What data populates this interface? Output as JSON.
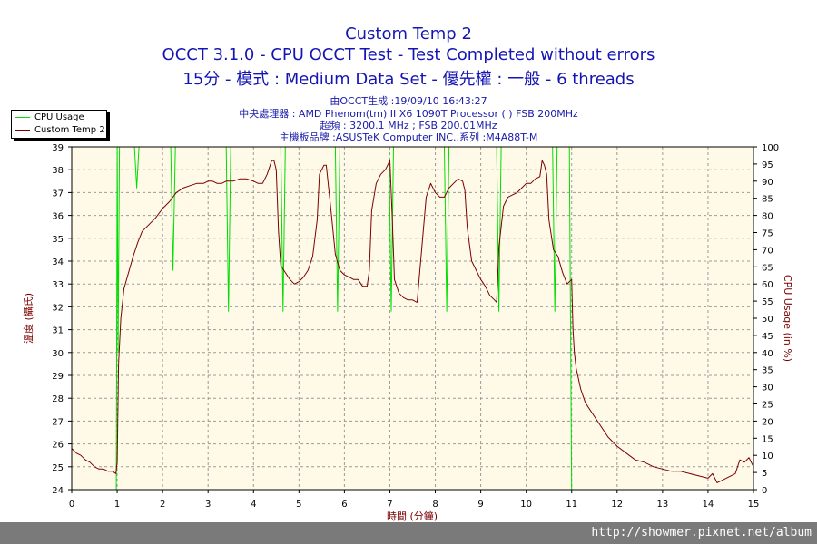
{
  "header": {
    "title": "Custom Temp 2",
    "line2": "OCCT 3.1.0 - CPU OCCT Test - Test Completed without errors",
    "line3": "15分 - 模式 : Medium Data Set - 優先權 : 一般 - 6 threads",
    "info": [
      "由OCCT生成 :19/09/10 16:43:27",
      "中央處理器 : AMD Phenom(tm) II X6 1090T Processor (  ) FSB 200MHz",
      "超頻 : 3200.1 MHz ; FSB 200.01MHz",
      "主機板品牌 :ASUSTeK Computer INC.,系列 :M4A88T-M"
    ]
  },
  "footer": {
    "url": "http://showmer.pixnet.net/album"
  },
  "colors": {
    "plot_bg": "#fffae8",
    "cpu_usage": "#00dd00",
    "temp": "#7a0000",
    "title": "#1515b5",
    "grid": "#9a9a9a"
  },
  "chart_data": {
    "type": "line",
    "xlabel": "時間 (分鐘)",
    "ylabel_left": "溫度 (攝氏)",
    "ylabel_right": "CPU Usage (in %)",
    "xlim": [
      0,
      15
    ],
    "ylim_left": [
      24,
      39
    ],
    "ylim_right": [
      0,
      100
    ],
    "x_ticks": [
      "0",
      "1",
      "2",
      "3",
      "4",
      "5",
      "6",
      "7",
      "8",
      "9",
      "10",
      "11",
      "12",
      "13",
      "14",
      "15"
    ],
    "y_ticks_left": [
      "24",
      "25",
      "26",
      "27",
      "28",
      "29",
      "30",
      "31",
      "32",
      "33",
      "34",
      "35",
      "36",
      "37",
      "38",
      "39"
    ],
    "y_ticks_right": [
      "0",
      "5",
      "10",
      "15",
      "20",
      "25",
      "30",
      "35",
      "40",
      "45",
      "50",
      "55",
      "60",
      "65",
      "70",
      "75",
      "80",
      "85",
      "90",
      "95",
      "100"
    ],
    "grid": true,
    "legend": [
      "CPU Usage",
      "Custom Temp 2"
    ],
    "series": [
      {
        "name": "CPU Usage",
        "axis": "right",
        "x": [
          0,
          0.98,
          1.0,
          1.02,
          1.05,
          1.1,
          1.38,
          1.43,
          1.48,
          1.53,
          2.18,
          2.23,
          2.28,
          2.34,
          3.4,
          3.45,
          3.5,
          3.56,
          4.6,
          4.65,
          4.7,
          4.76,
          5.8,
          5.85,
          5.9,
          5.96,
          6.98,
          7.03,
          7.08,
          7.14,
          8.2,
          8.25,
          8.3,
          8.36,
          9.35,
          9.4,
          9.45,
          9.51,
          10.58,
          10.63,
          10.68,
          10.74,
          10.95,
          11.0,
          11.05,
          15
        ],
        "values": [
          0,
          0,
          100,
          40,
          100,
          100,
          100,
          88,
          100,
          100,
          100,
          64,
          100,
          100,
          100,
          52,
          100,
          100,
          100,
          52,
          100,
          100,
          100,
          52,
          100,
          100,
          100,
          52,
          100,
          100,
          100,
          52,
          100,
          100,
          100,
          52,
          100,
          100,
          100,
          52,
          100,
          100,
          100,
          0,
          0,
          0
        ]
      },
      {
        "name": "Custom Temp 2",
        "axis": "left",
        "x": [
          0,
          0.1,
          0.2,
          0.3,
          0.4,
          0.5,
          0.6,
          0.7,
          0.8,
          0.9,
          0.97,
          1.0,
          1.03,
          1.08,
          1.15,
          1.25,
          1.35,
          1.45,
          1.55,
          1.7,
          1.85,
          2.0,
          2.15,
          2.3,
          2.45,
          2.6,
          2.75,
          2.9,
          3.0,
          3.1,
          3.2,
          3.3,
          3.4,
          3.55,
          3.7,
          3.85,
          4.0,
          4.1,
          4.2,
          4.3,
          4.4,
          4.45,
          4.5,
          4.55,
          4.6,
          4.7,
          4.8,
          4.9,
          5.0,
          5.1,
          5.2,
          5.3,
          5.4,
          5.45,
          5.5,
          5.55,
          5.6,
          5.7,
          5.8,
          5.9,
          6.0,
          6.1,
          6.2,
          6.3,
          6.4,
          6.5,
          6.55,
          6.6,
          6.7,
          6.8,
          6.9,
          6.95,
          7.0,
          7.05,
          7.1,
          7.2,
          7.3,
          7.4,
          7.5,
          7.6,
          7.7,
          7.8,
          7.9,
          8.0,
          8.1,
          8.2,
          8.3,
          8.4,
          8.5,
          8.6,
          8.65,
          8.7,
          8.8,
          8.9,
          9.0,
          9.1,
          9.2,
          9.3,
          9.35,
          9.4,
          9.5,
          9.6,
          9.7,
          9.8,
          9.9,
          10.0,
          10.1,
          10.2,
          10.3,
          10.35,
          10.4,
          10.45,
          10.5,
          10.6,
          10.7,
          10.8,
          10.9,
          11.0,
          11.03,
          11.06,
          11.1,
          11.2,
          11.3,
          11.4,
          11.5,
          11.6,
          11.8,
          12.0,
          12.2,
          12.4,
          12.6,
          12.8,
          13.0,
          13.2,
          13.4,
          13.6,
          13.8,
          14.0,
          14.1,
          14.2,
          14.3,
          14.4,
          14.5,
          14.6,
          14.7,
          14.8,
          14.9,
          15
        ],
        "values": [
          25.8,
          25.6,
          25.5,
          25.3,
          25.2,
          25.0,
          24.9,
          24.9,
          24.8,
          24.8,
          24.7,
          25.2,
          29.5,
          31.5,
          32.8,
          33.5,
          34.2,
          34.8,
          35.3,
          35.6,
          35.9,
          36.3,
          36.6,
          37.0,
          37.2,
          37.3,
          37.4,
          37.4,
          37.5,
          37.5,
          37.4,
          37.4,
          37.5,
          37.5,
          37.6,
          37.6,
          37.5,
          37.4,
          37.4,
          37.8,
          38.4,
          38.4,
          38.0,
          35.3,
          33.8,
          33.5,
          33.2,
          33.0,
          33.1,
          33.3,
          33.6,
          34.2,
          35.8,
          37.8,
          38.0,
          38.2,
          38.2,
          36.3,
          34.3,
          33.6,
          33.4,
          33.3,
          33.2,
          33.2,
          32.9,
          32.9,
          33.6,
          36.2,
          37.4,
          37.8,
          38.0,
          38.2,
          38.4,
          36.0,
          33.2,
          32.6,
          32.4,
          32.3,
          32.3,
          32.2,
          34.5,
          36.8,
          37.4,
          37.0,
          36.8,
          36.8,
          37.2,
          37.4,
          37.6,
          37.5,
          37.1,
          35.5,
          34.0,
          33.6,
          33.2,
          32.9,
          32.5,
          32.3,
          32.2,
          34.6,
          36.4,
          36.8,
          36.9,
          37.0,
          37.2,
          37.4,
          37.4,
          37.6,
          37.7,
          38.4,
          38.2,
          37.8,
          35.8,
          34.5,
          34.2,
          33.5,
          33.0,
          33.2,
          31.0,
          30.0,
          29.3,
          28.4,
          27.8,
          27.5,
          27.2,
          26.9,
          26.3,
          25.9,
          25.6,
          25.3,
          25.2,
          25.0,
          24.9,
          24.8,
          24.8,
          24.7,
          24.6,
          24.5,
          24.7,
          24.3,
          24.4,
          24.5,
          24.6,
          24.7,
          25.3,
          25.2,
          25.4,
          25.0
        ]
      }
    ]
  }
}
